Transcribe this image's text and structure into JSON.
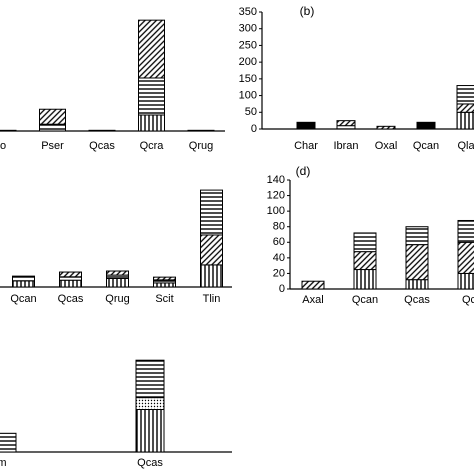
{
  "chart_data": [
    {
      "type": "bar",
      "stacked": true,
      "categories": [
        "o",
        "Pser",
        "Qcas",
        "Qcra",
        "Qrug"
      ],
      "ylim": [
        0,
        350
      ],
      "series": [
        {
          "pattern": "vertical",
          "values": [
            0,
            0,
            0,
            47,
            0
          ]
        },
        {
          "pattern": "horizontal",
          "values": [
            2,
            20,
            2,
            109,
            2
          ]
        },
        {
          "pattern": "diagonal",
          "values": [
            0,
            44,
            0,
            170,
            0
          ]
        }
      ]
    },
    {
      "type": "bar",
      "stacked": true,
      "title": "(b)",
      "categories": [
        "Char",
        "Ibran",
        "Oxal",
        "Qcan",
        "Qla"
      ],
      "ylim": [
        0,
        350
      ],
      "yticks": [
        0,
        50,
        100,
        150,
        200,
        250,
        300,
        350
      ],
      "series": [
        {
          "pattern": "vertical",
          "values": [
            0,
            0,
            0,
            0,
            50
          ]
        },
        {
          "pattern": "solid",
          "values": [
            20,
            0,
            0,
            20,
            0
          ]
        },
        {
          "pattern": "horizontal",
          "values": [
            0,
            10,
            0,
            0,
            0
          ]
        },
        {
          "pattern": "diagonal",
          "values": [
            0,
            15,
            8,
            0,
            25
          ]
        },
        {
          "pattern": "horizontal",
          "values": [
            0,
            0,
            0,
            0,
            55
          ]
        }
      ]
    },
    {
      "type": "bar",
      "stacked": true,
      "categories": [
        "Qcan",
        "Qcas",
        "Qrug",
        "Scit",
        "Tlin"
      ],
      "ylim": [
        0,
        300
      ],
      "series": [
        {
          "pattern": "vertical",
          "values": [
            18,
            20,
            25,
            12,
            65
          ]
        },
        {
          "pattern": "horizontal",
          "values": [
            14,
            10,
            10,
            9,
            0
          ]
        },
        {
          "pattern": "diagonal",
          "values": [
            0,
            14,
            12,
            8,
            88
          ]
        },
        {
          "pattern": "horizontal",
          "values": [
            0,
            0,
            0,
            0,
            132
          ]
        }
      ]
    },
    {
      "type": "bar",
      "stacked": true,
      "title": "(d)",
      "categories": [
        "Axal",
        "Qcan",
        "Qcas",
        "Qc"
      ],
      "ylim": [
        0,
        140
      ],
      "yticks": [
        0,
        20,
        40,
        60,
        80,
        100,
        120,
        140
      ],
      "series": [
        {
          "pattern": "vertical",
          "values": [
            0,
            25,
            12,
            20
          ]
        },
        {
          "pattern": "diagonal",
          "values": [
            10,
            23,
            45,
            40
          ]
        },
        {
          "pattern": "horizontal",
          "values": [
            0,
            24,
            23,
            28
          ]
        }
      ]
    },
    {
      "type": "bar",
      "stacked": true,
      "categories": [
        "m",
        "Qcas"
      ],
      "ylim": [
        0,
        300
      ],
      "series": [
        {
          "pattern": "vertical",
          "values": [
            0,
            125
          ]
        },
        {
          "pattern": "dotted",
          "values": [
            0,
            35
          ]
        },
        {
          "pattern": "horizontal",
          "values": [
            55,
            110
          ]
        }
      ]
    }
  ]
}
